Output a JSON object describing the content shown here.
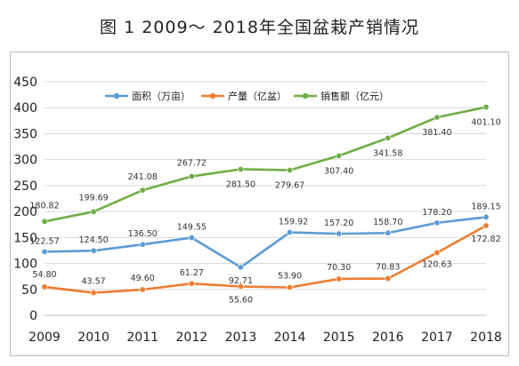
{
  "title": "图 1  2009～ 2018年全国盆栽产销情况",
  "chart_data": {
    "type": "line",
    "title": "图 1  2009～ 2018年全国盆栽产销情况",
    "categories": [
      "2009",
      "2010",
      "2011",
      "2012",
      "2013",
      "2014",
      "2015",
      "2016",
      "2017",
      "2018"
    ],
    "ylim": [
      0,
      450
    ],
    "yticks": [
      "0",
      "50",
      "100",
      "150",
      "200",
      "250",
      "300",
      "350",
      "400",
      "450"
    ],
    "grid": true,
    "legend_position": "top",
    "series": [
      {
        "name": "面积（万亩）",
        "color": "#5b9bd5",
        "values": [
          122.57,
          124.5,
          136.5,
          149.55,
          92.71,
          159.92,
          157.2,
          158.7,
          178.2,
          189.15
        ],
        "labels": [
          "122.57",
          "124.50",
          "136.50",
          "149.55",
          "92.71",
          "159.92",
          "157.20",
          "158.70",
          "178.20",
          "189.15"
        ]
      },
      {
        "name": "产量（亿盆）",
        "color": "#ed7d31",
        "values": [
          54.8,
          43.57,
          49.6,
          61.27,
          55.6,
          53.9,
          70.3,
          70.83,
          120.63,
          172.82
        ],
        "labels": [
          "54.80",
          "43.57",
          "49.60",
          "61.27",
          "55.60",
          "53.90",
          "70.30",
          "70.83",
          "120.63",
          "172.82"
        ]
      },
      {
        "name": "销售额（亿元）",
        "color": "#70ad47",
        "values": [
          180.82,
          199.69,
          241.08,
          267.72,
          281.5,
          279.67,
          307.4,
          341.58,
          381.4,
          401.1
        ],
        "labels": [
          "180.82",
          "199.69",
          "241.08",
          "267.72",
          "281.50",
          "279.67",
          "307.40",
          "341.58",
          "381.40",
          "401.10"
        ]
      }
    ]
  }
}
